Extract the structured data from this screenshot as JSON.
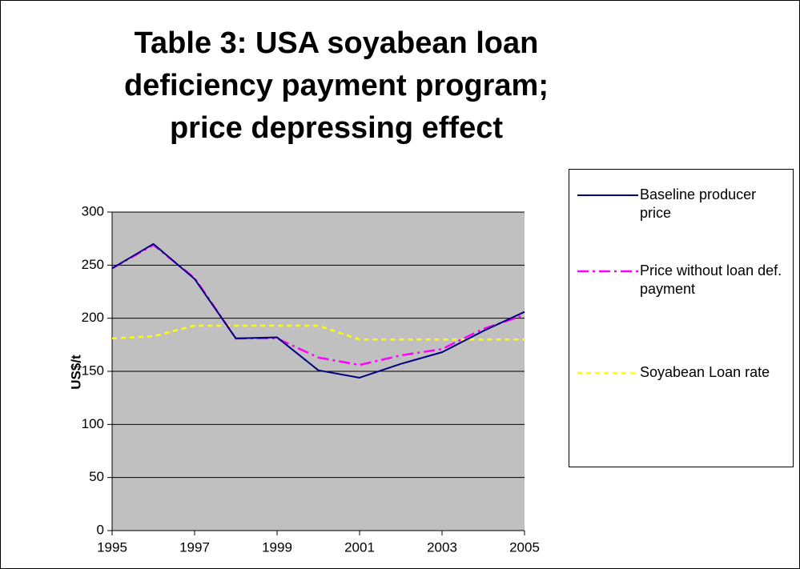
{
  "chart_data": {
    "type": "line",
    "title": "Table 3: USA soyabean loan deficiency payment program; price depressing effect",
    "y_label": "US$/t",
    "x": [
      1995,
      1996,
      1997,
      1998,
      1999,
      2000,
      2001,
      2002,
      2003,
      2004,
      2005
    ],
    "xlim": [
      1995,
      2005
    ],
    "xticks": [
      1995,
      1997,
      1999,
      2001,
      2003,
      2005
    ],
    "ylim": [
      0,
      300
    ],
    "yticks": [
      0,
      50,
      100,
      150,
      200,
      250,
      300
    ],
    "grid": true,
    "legend": "right",
    "series": [
      {
        "name": "Baseline producer price",
        "color": "#000080",
        "dash": "solid",
        "values": [
          247,
          270,
          237,
          181,
          182,
          151,
          144,
          157,
          168,
          188,
          206
        ]
      },
      {
        "name": "Price without loan def. payment",
        "color": "#ff00ff",
        "dash": "dashdot",
        "values": [
          247,
          269,
          238,
          181,
          181,
          163,
          156,
          165,
          171,
          190,
          203
        ]
      },
      {
        "name": "Soyabean Loan rate",
        "color": "#ffff00",
        "dash": "dashed",
        "values": [
          181,
          183,
          193,
          193,
          193,
          193,
          180,
          180,
          180,
          180,
          180
        ]
      }
    ]
  }
}
